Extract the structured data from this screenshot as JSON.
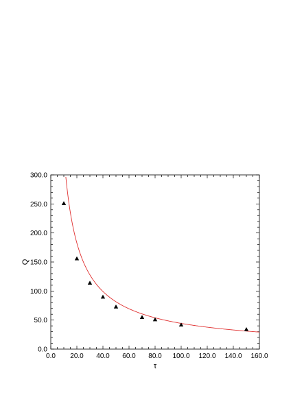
{
  "chart_data": {
    "type": "scatter",
    "title": "",
    "xlabel": "τ",
    "ylabel": "Q",
    "xlim": [
      0,
      160
    ],
    "ylim": [
      0,
      300
    ],
    "x_ticks": [
      0,
      20,
      40,
      60,
      80,
      100,
      120,
      140,
      160
    ],
    "y_ticks": [
      0,
      50,
      100,
      150,
      200,
      250,
      300
    ],
    "x_tick_labels": [
      "0.0",
      "20.0",
      "40.0",
      "60.0",
      "80.0",
      "100.0",
      "120.0",
      "140.0",
      "160.0"
    ],
    "y_tick_labels": [
      "0.0",
      "50.0",
      "100.0",
      "150.0",
      "200.0",
      "250.0",
      "300.0"
    ],
    "grid": false,
    "legend": "none",
    "series": [
      {
        "marker": "triangle",
        "color": "#000000",
        "x": [
          10,
          20,
          30,
          40,
          50,
          70,
          80,
          100,
          150
        ],
        "y": [
          251,
          156,
          114,
          90,
          73,
          55,
          51,
          42,
          34
        ]
      }
    ],
    "fit_curve": {
      "color": "#e03030",
      "model": "Q = a * tau^b",
      "a": 2550,
      "b": -0.88,
      "x_range": [
        8.5,
        160
      ]
    }
  }
}
